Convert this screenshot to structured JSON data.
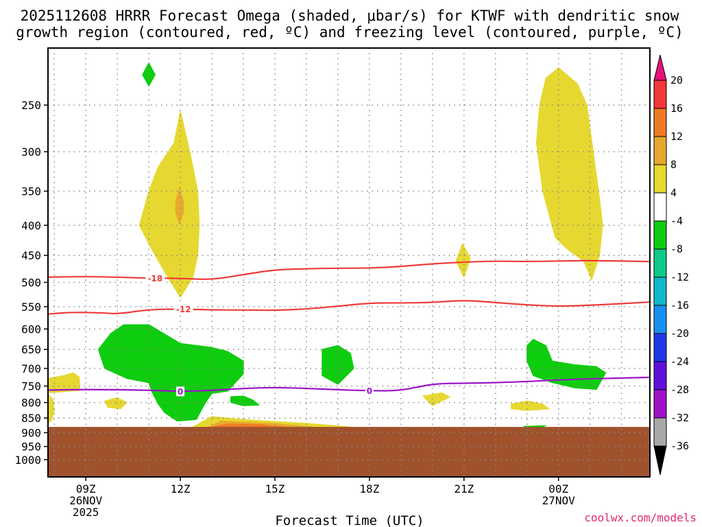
{
  "chart_data": {
    "type": "time-height contour",
    "title_line1": "2025112608 HRRR Forecast Omega (shaded, μbar/s) for KTWF with dendritic snow",
    "title_line2": "growth region (contoured, red, ºC) and freezing level (contoured, purple, ºC)",
    "xlabel": "Forecast Time (UTC)",
    "credit": "coolwx.com/models",
    "x_range": [
      7.8,
      26.9
    ],
    "x_ticks": [
      {
        "x": 9,
        "label": "09Z",
        "sub1": "26NOV",
        "sub2": "2025"
      },
      {
        "x": 12,
        "label": "12Z",
        "sub1": "",
        "sub2": ""
      },
      {
        "x": 15,
        "label": "15Z",
        "sub1": "",
        "sub2": ""
      },
      {
        "x": 18,
        "label": "18Z",
        "sub1": "",
        "sub2": ""
      },
      {
        "x": 21,
        "label": "21Z",
        "sub1": "",
        "sub2": ""
      },
      {
        "x": 24,
        "label": "00Z",
        "sub1": "27NOV",
        "sub2": ""
      }
    ],
    "y_scale": "log-pressure",
    "y_range_hPa": [
      1070,
      200
    ],
    "y_ticks": [
      250,
      300,
      350,
      400,
      450,
      500,
      550,
      600,
      650,
      700,
      750,
      800,
      850,
      900,
      950,
      1000
    ],
    "y_tick_labels": [
      "250",
      "300",
      "350",
      "400",
      "450",
      "500",
      "550",
      "600",
      "650",
      "700",
      "750",
      "800",
      "850",
      "900",
      "950",
      "1000"
    ],
    "terrain_top_hPa": 880,
    "colorbar": {
      "levels": [
        "20",
        "16",
        "12",
        "8",
        "4",
        "-4",
        "-8",
        "-12",
        "-16",
        "-20",
        "-24",
        "-28",
        "-32",
        "-36"
      ],
      "colors": [
        "#e8107a",
        "#f23838",
        "#f07a24",
        "#e6a82e",
        "#e8d830",
        "#ffffff",
        "#10cc10",
        "#10c888",
        "#10b8c8",
        "#1890f0",
        "#2038e8",
        "#6010d8",
        "#a010c8",
        "#a8a8a8",
        "#000000"
      ]
    },
    "colors": {
      "positive_weak": "#e6d831",
      "positive_moderate": "#e8aa2e",
      "positive_strong": "#f07a24",
      "negative_weak": "#0ecc0e",
      "terrain": "#a0522d",
      "dgz_contour": "#ee3a3a",
      "freezing_contour": "#9b12c8",
      "grid": "#888888"
    },
    "dgz_upper": {
      "label": "-18",
      "label_x": 11.2,
      "points": [
        [
          7.8,
          490
        ],
        [
          8.5,
          489
        ],
        [
          9.5,
          489
        ],
        [
          11,
          492
        ],
        [
          12,
          492
        ],
        [
          13,
          495
        ],
        [
          14,
          485
        ],
        [
          15,
          476
        ],
        [
          16,
          474
        ],
        [
          17,
          473
        ],
        [
          18,
          473
        ],
        [
          19,
          470
        ],
        [
          20,
          465
        ],
        [
          21,
          462
        ],
        [
          22,
          460
        ],
        [
          23,
          461
        ],
        [
          24,
          460
        ],
        [
          25,
          459
        ],
        [
          26.9,
          461
        ]
      ]
    },
    "dgz_lower": {
      "label": "-12",
      "label_x": 12.1,
      "points": [
        [
          7.8,
          566
        ],
        [
          8.5,
          562
        ],
        [
          9.5,
          563
        ],
        [
          10,
          566
        ],
        [
          11,
          556
        ],
        [
          12,
          555
        ],
        [
          13,
          557
        ],
        [
          14,
          557
        ],
        [
          15,
          558
        ],
        [
          16,
          555
        ],
        [
          17,
          549
        ],
        [
          18,
          542
        ],
        [
          19,
          542
        ],
        [
          20,
          541
        ],
        [
          21,
          536
        ],
        [
          22,
          541
        ],
        [
          23,
          546
        ],
        [
          24,
          549
        ],
        [
          25,
          547
        ],
        [
          26.9,
          540
        ]
      ]
    },
    "freezing_level": {
      "label": "0",
      "label_positions": [
        12,
        18
      ],
      "points": [
        [
          7.8,
          762
        ],
        [
          9,
          760
        ],
        [
          11,
          762
        ],
        [
          12,
          766
        ],
        [
          13,
          763
        ],
        [
          14,
          757
        ],
        [
          15,
          754
        ],
        [
          16,
          757
        ],
        [
          17,
          761
        ],
        [
          18,
          764
        ],
        [
          19,
          764
        ],
        [
          20,
          743
        ],
        [
          21,
          742
        ],
        [
          22,
          740
        ],
        [
          23,
          737
        ],
        [
          24,
          732
        ],
        [
          25,
          729
        ],
        [
          26.9,
          725
        ]
      ]
    },
    "regions": [
      {
        "name": "positive-plume-12z",
        "sign": "+",
        "value": 4,
        "points": [
          [
            12,
            256
          ],
          [
            12.3,
            300
          ],
          [
            12.55,
            350
          ],
          [
            12.6,
            400
          ],
          [
            12.55,
            450
          ],
          [
            12.4,
            490
          ],
          [
            12,
            530
          ],
          [
            11.6,
            490
          ],
          [
            11.1,
            440
          ],
          [
            10.7,
            400
          ],
          [
            11,
            350
          ],
          [
            11.3,
            318
          ],
          [
            11.8,
            290
          ]
        ]
      },
      {
        "name": "positive-core-12z",
        "sign": "+",
        "value": 8,
        "points": [
          [
            11.97,
            345
          ],
          [
            12.1,
            365
          ],
          [
            12.1,
            380
          ],
          [
            11.97,
            398
          ],
          [
            11.85,
            380
          ],
          [
            11.85,
            365
          ]
        ]
      },
      {
        "name": "positive-plume-00z",
        "sign": "+",
        "value": 4,
        "points": [
          [
            24,
            216
          ],
          [
            24.6,
            230
          ],
          [
            24.9,
            250
          ],
          [
            25.1,
            300
          ],
          [
            25.3,
            360
          ],
          [
            25.4,
            400
          ],
          [
            25.3,
            450
          ],
          [
            25.05,
            495
          ],
          [
            24.8,
            460
          ],
          [
            24.3,
            440
          ],
          [
            23.9,
            420
          ],
          [
            23.5,
            350
          ],
          [
            23.3,
            290
          ],
          [
            23.4,
            250
          ],
          [
            23.6,
            225
          ]
        ]
      },
      {
        "name": "positive-21z-top",
        "sign": "+",
        "value": 4,
        "points": [
          [
            20.95,
            430
          ],
          [
            21.2,
            455
          ],
          [
            21,
            490
          ],
          [
            20.75,
            460
          ]
        ]
      },
      {
        "name": "positive-low-left",
        "sign": "+",
        "value": 4,
        "points": [
          [
            7.8,
            728
          ],
          [
            8.3,
            720
          ],
          [
            8.6,
            712
          ],
          [
            8.8,
            725
          ],
          [
            8.8,
            763
          ],
          [
            7.8,
            770
          ]
        ]
      },
      {
        "name": "positive-low-left2",
        "sign": "+",
        "value": 4,
        "points": [
          [
            7.8,
            775
          ],
          [
            7.95,
            790
          ],
          [
            8,
            825
          ],
          [
            7.9,
            860
          ],
          [
            7.8,
            865
          ]
        ]
      },
      {
        "name": "positive-small-10z",
        "sign": "+",
        "value": 4,
        "points": [
          [
            9.6,
            795
          ],
          [
            10,
            785
          ],
          [
            10.3,
            800
          ],
          [
            10.1,
            820
          ],
          [
            9.7,
            815
          ]
        ]
      },
      {
        "name": "positive-small-20z",
        "sign": "+",
        "value": 4,
        "points": [
          [
            19.7,
            780
          ],
          [
            20.3,
            770
          ],
          [
            20.55,
            783
          ],
          [
            20,
            810
          ]
        ]
      },
      {
        "name": "positive-small-23z",
        "sign": "+",
        "value": 4,
        "points": [
          [
            22.5,
            805
          ],
          [
            23,
            795
          ],
          [
            23.5,
            805
          ],
          [
            23.7,
            820
          ],
          [
            23,
            825
          ],
          [
            22.5,
            820
          ]
        ]
      },
      {
        "name": "positive-surface",
        "sign": "+",
        "value": 4,
        "points": [
          [
            12.4,
            880
          ],
          [
            13,
            845
          ],
          [
            14,
            855
          ],
          [
            15,
            862
          ],
          [
            16,
            868
          ],
          [
            17.4,
            880
          ]
        ]
      },
      {
        "name": "positive-surface-mid",
        "sign": "+",
        "value": 8,
        "points": [
          [
            12.9,
            880
          ],
          [
            13.3,
            860
          ],
          [
            14,
            864
          ],
          [
            15,
            869
          ],
          [
            16.2,
            880
          ]
        ]
      },
      {
        "name": "positive-surface-core",
        "sign": "+",
        "value": 12,
        "points": [
          [
            13,
            880
          ],
          [
            13.5,
            870
          ],
          [
            14.5,
            872
          ],
          [
            15.3,
            880
          ]
        ]
      },
      {
        "name": "negative-top-11z",
        "sign": "-",
        "value": -4,
        "points": [
          [
            11,
            212
          ],
          [
            11.2,
            222
          ],
          [
            11,
            232
          ],
          [
            10.8,
            222
          ]
        ]
      },
      {
        "name": "negative-big-10z",
        "sign": "-",
        "value": -4,
        "points": [
          [
            10.2,
            590
          ],
          [
            11,
            590
          ],
          [
            12,
            635
          ],
          [
            13,
            645
          ],
          [
            13.5,
            655
          ],
          [
            14,
            680
          ],
          [
            14,
            715
          ],
          [
            13.5,
            765
          ],
          [
            13,
            772
          ],
          [
            12.8,
            800
          ],
          [
            12.5,
            855
          ],
          [
            11.9,
            860
          ],
          [
            11.5,
            832
          ],
          [
            11.3,
            805
          ],
          [
            11.1,
            768
          ],
          [
            11,
            740
          ],
          [
            10.3,
            728
          ],
          [
            9.6,
            700
          ],
          [
            9.4,
            650
          ],
          [
            9.8,
            610
          ]
        ]
      },
      {
        "name": "negative-small-14z",
        "sign": "-",
        "value": -4,
        "points": [
          [
            13.6,
            782
          ],
          [
            14,
            780
          ],
          [
            14.3,
            792
          ],
          [
            14.5,
            808
          ],
          [
            14,
            810
          ],
          [
            13.6,
            800
          ]
        ]
      },
      {
        "name": "negative-17z",
        "sign": "-",
        "value": -4,
        "points": [
          [
            16.5,
            650
          ],
          [
            17,
            640
          ],
          [
            17.4,
            660
          ],
          [
            17.5,
            700
          ],
          [
            17,
            745
          ],
          [
            16.5,
            720
          ]
        ]
      },
      {
        "name": "negative-right-00z",
        "sign": "-",
        "value": -4,
        "points": [
          [
            23.2,
            625
          ],
          [
            23.6,
            640
          ],
          [
            23.8,
            680
          ],
          [
            24.5,
            690
          ],
          [
            25.2,
            695
          ],
          [
            25.5,
            712
          ],
          [
            25.2,
            760
          ],
          [
            24.5,
            755
          ],
          [
            23.8,
            740
          ],
          [
            23.2,
            720
          ],
          [
            23,
            680
          ],
          [
            23,
            640
          ]
        ]
      },
      {
        "name": "negative-small-23z",
        "sign": "-",
        "value": -4,
        "points": [
          [
            22.9,
            878
          ],
          [
            23.6,
            876
          ],
          [
            23.4,
            882
          ]
        ]
      }
    ]
  }
}
